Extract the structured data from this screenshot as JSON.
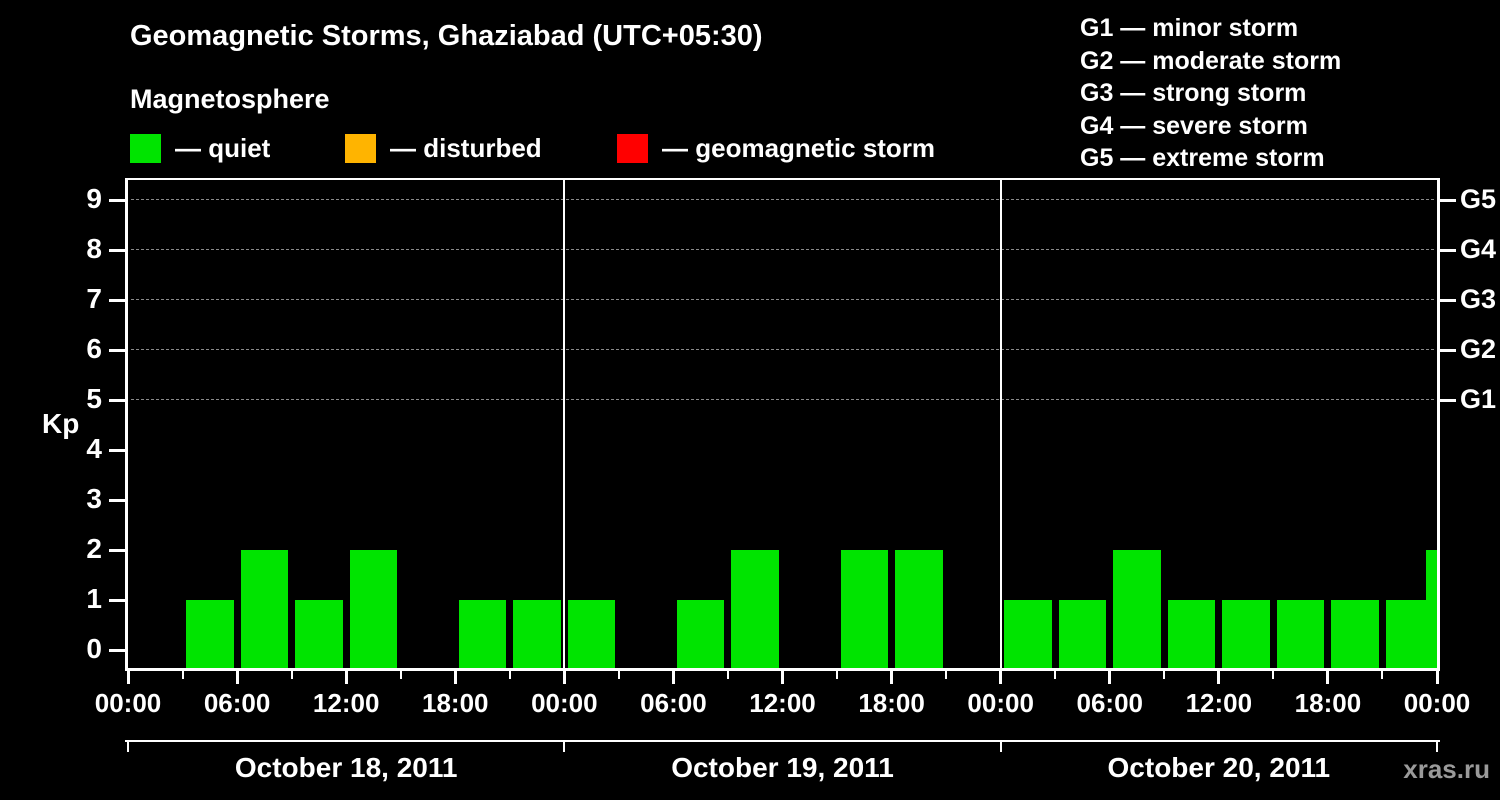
{
  "title": "Geomagnetic Storms, Ghaziabad (UTC+05:30)",
  "legend": {
    "heading": "Magnetosphere",
    "items": [
      {
        "name": "quiet",
        "label": "— quiet",
        "color": "#00e400"
      },
      {
        "name": "disturbed",
        "label": "— disturbed",
        "color": "#ffb400"
      },
      {
        "name": "storm",
        "label": "— geomagnetic storm",
        "color": "#ff0000"
      }
    ]
  },
  "g_legend": [
    "G1 — minor storm",
    "G2 — moderate storm",
    "G3 — strong storm",
    "G4 — severe storm",
    "G5 — extreme storm"
  ],
  "watermark": "xras.ru",
  "chart_data": {
    "type": "bar",
    "title": "Geomagnetic Storms, Ghaziabad (UTC+05:30)",
    "ylabel": "Kp",
    "xlabel": "",
    "ylim": [
      0,
      9.5
    ],
    "y_ticks": [
      0,
      1,
      2,
      3,
      4,
      5,
      6,
      7,
      8,
      9
    ],
    "x_tick_labels": [
      "00:00",
      "06:00",
      "12:00",
      "18:00",
      "00:00",
      "06:00",
      "12:00",
      "18:00",
      "00:00",
      "06:00",
      "12:00",
      "18:00",
      "00:00"
    ],
    "bar_interval_hours": 3,
    "grid": "dashed horizontal lines at G storm levels only",
    "legend_position": "top",
    "g_levels": [
      {
        "label": "G1",
        "kp": 5
      },
      {
        "label": "G2",
        "kp": 6
      },
      {
        "label": "G3",
        "kp": 7
      },
      {
        "label": "G4",
        "kp": 8
      },
      {
        "label": "G5",
        "kp": 9
      }
    ],
    "days": [
      {
        "date": "October 18, 2011",
        "values": [
          0,
          1,
          2,
          1,
          2,
          0,
          1,
          1
        ]
      },
      {
        "date": "October 19, 2011",
        "values": [
          1,
          0,
          1,
          2,
          0,
          2,
          2,
          0
        ]
      },
      {
        "date": "October 20, 2011",
        "values": [
          1,
          1,
          2,
          1,
          1,
          1,
          1,
          1
        ]
      }
    ],
    "next_day_clipped_value": 2,
    "colors": {
      "quiet": "#00e400",
      "disturbed": "#ffb400",
      "storm": "#ff0000",
      "axis": "#ffffff",
      "grid": "#8a8a8a",
      "background": "#000000",
      "watermark": "#9a9a9a"
    }
  }
}
